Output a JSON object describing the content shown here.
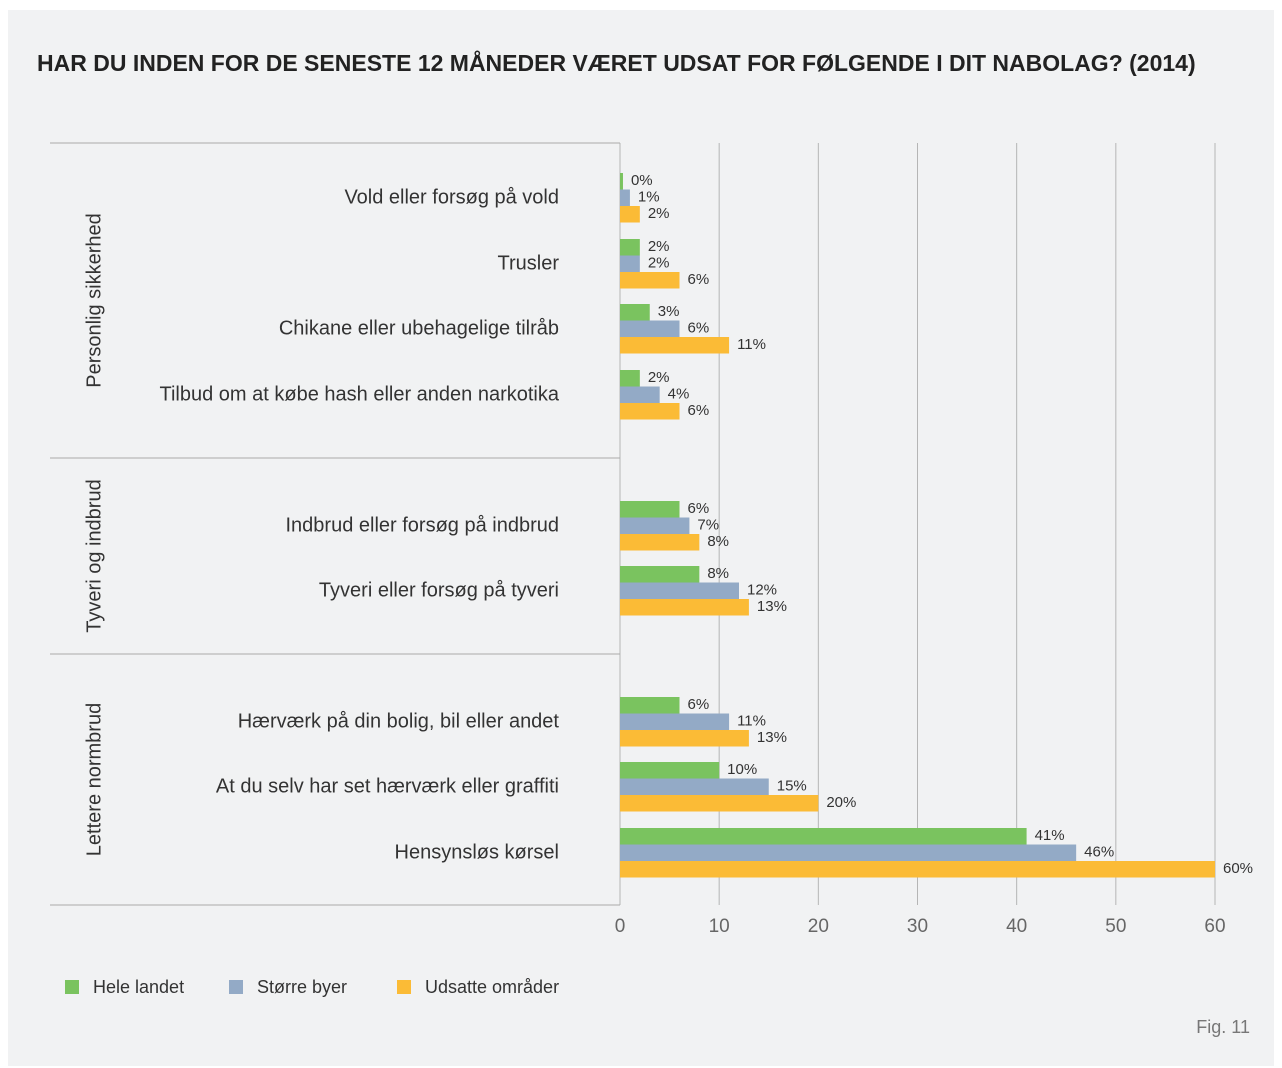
{
  "chart_data": {
    "type": "bar",
    "orientation": "horizontal",
    "title": "HAR DU INDEN FOR DE SENESTE 12 MÅNEDER VÆRET UDSAT FOR FØLGENDE I DIT NABOLAG? (2014)",
    "groups": [
      {
        "name": "Personlig sikkerhed",
        "categories": [
          "Vold eller forsøg på vold",
          "Trusler",
          "Chikane eller ubehagelige tilråb",
          "Tilbud om at købe hash eller anden narkotika"
        ]
      },
      {
        "name": "Tyveri og indbrud",
        "categories": [
          "Indbrud eller forsøg på indbrud",
          "Tyveri eller forsøg på tyveri"
        ]
      },
      {
        "name": "Lettere normbrud",
        "categories": [
          "Hærværk på din bolig, bil eller andet",
          "At du selv har set hærværk eller graffiti",
          "Hensynsløs kørsel"
        ]
      }
    ],
    "series": [
      {
        "name": "Hele landet",
        "color": "#7ac35f",
        "values": [
          0.3,
          2,
          3,
          2,
          6,
          8,
          6,
          10,
          41
        ],
        "value_labels": [
          "0%",
          "2%",
          "3%",
          "2%",
          "6%",
          "8%",
          "6%",
          "10%",
          "41%"
        ]
      },
      {
        "name": "Større byer",
        "color": "#93aac6",
        "values": [
          1,
          2,
          6,
          4,
          7,
          12,
          11,
          15,
          46
        ],
        "value_labels": [
          "1%",
          "2%",
          "6%",
          "4%",
          "7%",
          "12%",
          "11%",
          "15%",
          "46%"
        ]
      },
      {
        "name": "Udsatte områder",
        "color": "#fbbb36",
        "values": [
          2,
          6,
          11,
          6,
          8,
          13,
          13,
          20,
          60
        ],
        "value_labels": [
          "2%",
          "6%",
          "11%",
          "6%",
          "8%",
          "13%",
          "13%",
          "20%",
          "60%"
        ]
      }
    ],
    "xlim": [
      0,
      60
    ],
    "xticks": [
      0,
      10,
      20,
      30,
      40,
      50,
      60
    ],
    "grid": true,
    "legend": "bottom-left",
    "footnote": "Fig. 11"
  }
}
